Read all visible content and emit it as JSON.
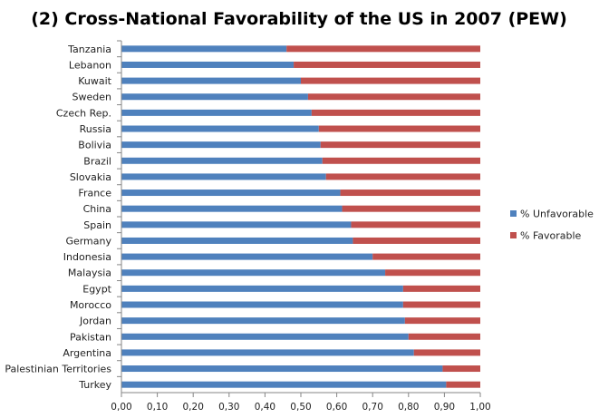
{
  "chart_data": {
    "type": "bar",
    "orientation": "horizontal",
    "stacked": true,
    "title": "(2) Cross-National Favorability of the US in 2007 (PEW)",
    "xlabel": "",
    "ylabel": "",
    "xlim": [
      0,
      1
    ],
    "x_ticks": [
      "0,00",
      "0,10",
      "0,20",
      "0,30",
      "0,40",
      "0,50",
      "0,60",
      "0,70",
      "0,80",
      "0,90",
      "1,00"
    ],
    "grid": false,
    "legend_position": "right",
    "categories": [
      "Tanzania",
      "Lebanon",
      "Kuwait",
      "Sweden",
      "Czech Rep.",
      "Russia",
      "Bolivia",
      "Brazil",
      "Slovakia",
      "France",
      "China",
      "Spain",
      "Germany",
      "Indonesia",
      "Malaysia",
      "Egypt",
      "Morocco",
      "Jordan",
      "Pakistan",
      "Argentina",
      "Palestinian Territories",
      "Turkey"
    ],
    "series": [
      {
        "name": "% Unfavorable",
        "color": "#4F81BD",
        "values": [
          0.46,
          0.48,
          0.5,
          0.52,
          0.53,
          0.55,
          0.555,
          0.56,
          0.57,
          0.61,
          0.615,
          0.64,
          0.645,
          0.7,
          0.735,
          0.785,
          0.785,
          0.79,
          0.8,
          0.815,
          0.895,
          0.905
        ]
      },
      {
        "name": "% Favorable",
        "color": "#C0504D",
        "values": [
          0.54,
          0.52,
          0.5,
          0.48,
          0.47,
          0.45,
          0.445,
          0.44,
          0.43,
          0.39,
          0.385,
          0.36,
          0.355,
          0.3,
          0.265,
          0.215,
          0.215,
          0.21,
          0.2,
          0.185,
          0.105,
          0.095
        ]
      }
    ]
  }
}
